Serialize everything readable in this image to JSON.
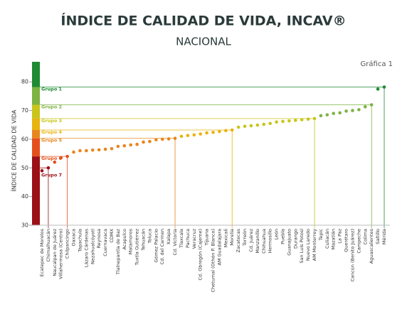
{
  "chart_data": {
    "type": "dot",
    "title": "ÍNDICE DE CALIDAD DE VIDA, INCAV®",
    "subtitle": "NACIONAL",
    "annotation": "Gráfica 1",
    "y_label": "ÍNDICE DE CALIDAD DE VIDA",
    "categories": [
      "Ecatepec de Morelos",
      "Chimalhuacán",
      "Naucalpan de Juárez",
      "Villahermosa (Centro)",
      "Chilpancingo",
      "Oaxaca",
      "Tapachula",
      "Lázaro Cárdenas",
      "Nezahualcóyotl",
      "Reynosa",
      "Cuernavaca",
      "CDMX",
      "Tlalnepantla de Baz",
      "Acapulco",
      "Matamoros",
      "Tuxtla Gutiérrez",
      "Tehuacán",
      "Toluca",
      "Gómez Palacio",
      "Cd. del Carmen",
      "Xalapa",
      "Cd. Victoria",
      "Tlaxcala",
      "Pachuca",
      "Veracruz",
      "Cd. Obregón (Cajeme)",
      "Tijuana",
      "Chetumal (Othón P. Blanco)",
      "AM Guadalajara",
      "Mexicali",
      "Morelia",
      "Zacatecas",
      "Torreón",
      "Cd. Juárez",
      "Manzanillo",
      "Chihuahua",
      "Hermosillo",
      "León",
      "Puebla",
      "Guanajuato",
      "Durango",
      "San Luis Potosí",
      "Nuevo Laredo",
      "AM Monterrey",
      "Tepic",
      "Culiacán",
      "Mazatlán",
      "La Paz",
      "Querétaro",
      "Cancún (Benito Juárez)",
      "Campeche",
      "Colima",
      "Aguascalientes",
      "Saltillo",
      "Mérida"
    ],
    "series": [
      {
        "name": "Grupo 1",
        "color": "#1e8a33",
        "values": [
          null,
          null,
          null,
          null,
          null,
          null,
          null,
          null,
          null,
          null,
          null,
          null,
          null,
          null,
          null,
          null,
          null,
          null,
          null,
          null,
          null,
          null,
          null,
          null,
          null,
          null,
          null,
          null,
          null,
          null,
          null,
          null,
          null,
          null,
          null,
          null,
          null,
          null,
          null,
          null,
          null,
          null,
          null,
          null,
          null,
          null,
          null,
          null,
          null,
          null,
          null,
          null,
          null,
          77.5,
          78.2
        ]
      },
      {
        "name": "Grupo 2",
        "color": "#7cb342",
        "values": [
          null,
          null,
          null,
          null,
          null,
          null,
          null,
          null,
          null,
          null,
          null,
          null,
          null,
          null,
          null,
          null,
          null,
          null,
          null,
          null,
          null,
          null,
          null,
          null,
          null,
          null,
          null,
          null,
          null,
          null,
          null,
          null,
          null,
          null,
          null,
          null,
          null,
          null,
          null,
          null,
          null,
          null,
          null,
          null,
          68.2,
          68.5,
          69.0,
          69.2,
          69.8,
          70.0,
          70.3,
          71.3,
          72.0,
          null,
          null
        ]
      },
      {
        "name": "Grupo 3",
        "color": "#c9c51c",
        "values": [
          null,
          null,
          null,
          null,
          null,
          null,
          null,
          null,
          null,
          null,
          null,
          null,
          null,
          null,
          null,
          null,
          null,
          null,
          null,
          null,
          null,
          null,
          null,
          null,
          null,
          null,
          null,
          null,
          null,
          null,
          null,
          64.2,
          64.5,
          64.7,
          64.9,
          65.2,
          65.5,
          66.0,
          66.2,
          66.4,
          66.6,
          66.8,
          67.0,
          67.2,
          null,
          null,
          null,
          null,
          null,
          null,
          null,
          null,
          null,
          null,
          null
        ]
      },
      {
        "name": "Grupo 4",
        "color": "#e8b40f",
        "values": [
          null,
          null,
          null,
          null,
          null,
          null,
          null,
          null,
          null,
          null,
          null,
          null,
          null,
          null,
          null,
          null,
          null,
          null,
          null,
          null,
          null,
          null,
          61.0,
          61.3,
          61.5,
          61.8,
          62.2,
          62.4,
          62.7,
          63.0,
          63.2,
          null,
          null,
          null,
          null,
          null,
          null,
          null,
          null,
          null,
          null,
          null,
          null,
          null,
          null,
          null,
          null,
          null,
          null,
          null,
          null,
          null,
          null,
          null,
          null
        ]
      },
      {
        "name": "Grupo 5",
        "color": "#e8861e",
        "values": [
          null,
          null,
          null,
          null,
          null,
          55.5,
          56.0,
          56.0,
          56.2,
          56.3,
          56.5,
          56.7,
          57.5,
          57.7,
          58.0,
          58.2,
          59.0,
          59.2,
          59.8,
          60.0,
          60.1,
          60.3,
          null,
          null,
          null,
          null,
          null,
          null,
          null,
          null,
          null,
          null,
          null,
          null,
          null,
          null,
          null,
          null,
          null,
          null,
          null,
          null,
          null,
          null,
          null,
          null,
          null,
          null,
          null,
          null,
          null,
          null,
          null,
          null,
          null
        ]
      },
      {
        "name": "Grupo 6",
        "color": "#e4501c",
        "values": [
          null,
          null,
          52.0,
          53.5,
          54.0,
          null,
          null,
          null,
          null,
          null,
          null,
          null,
          null,
          null,
          null,
          null,
          null,
          null,
          null,
          null,
          null,
          null,
          null,
          null,
          null,
          null,
          null,
          null,
          null,
          null,
          null,
          null,
          null,
          null,
          null,
          null,
          null,
          null,
          null,
          null,
          null,
          null,
          null,
          null,
          null,
          null,
          null,
          null,
          null,
          null,
          null,
          null,
          null,
          null,
          null
        ]
      },
      {
        "name": "Grupo 7",
        "color": "#9b1016",
        "values": [
          49.0,
          50.0,
          null,
          null,
          null,
          null,
          null,
          null,
          null,
          null,
          null,
          null,
          null,
          null,
          null,
          null,
          null,
          null,
          null,
          null,
          null,
          null,
          null,
          null,
          null,
          null,
          null,
          null,
          null,
          null,
          null,
          null,
          null,
          null,
          null,
          null,
          null,
          null,
          null,
          null,
          null,
          null,
          null,
          null,
          null,
          null,
          null,
          null,
          null,
          null,
          null,
          null,
          null,
          null,
          null
        ]
      }
    ],
    "ylim": [
      30,
      87
    ],
    "yticks": [
      30,
      40,
      50,
      60,
      70,
      80
    ]
  }
}
